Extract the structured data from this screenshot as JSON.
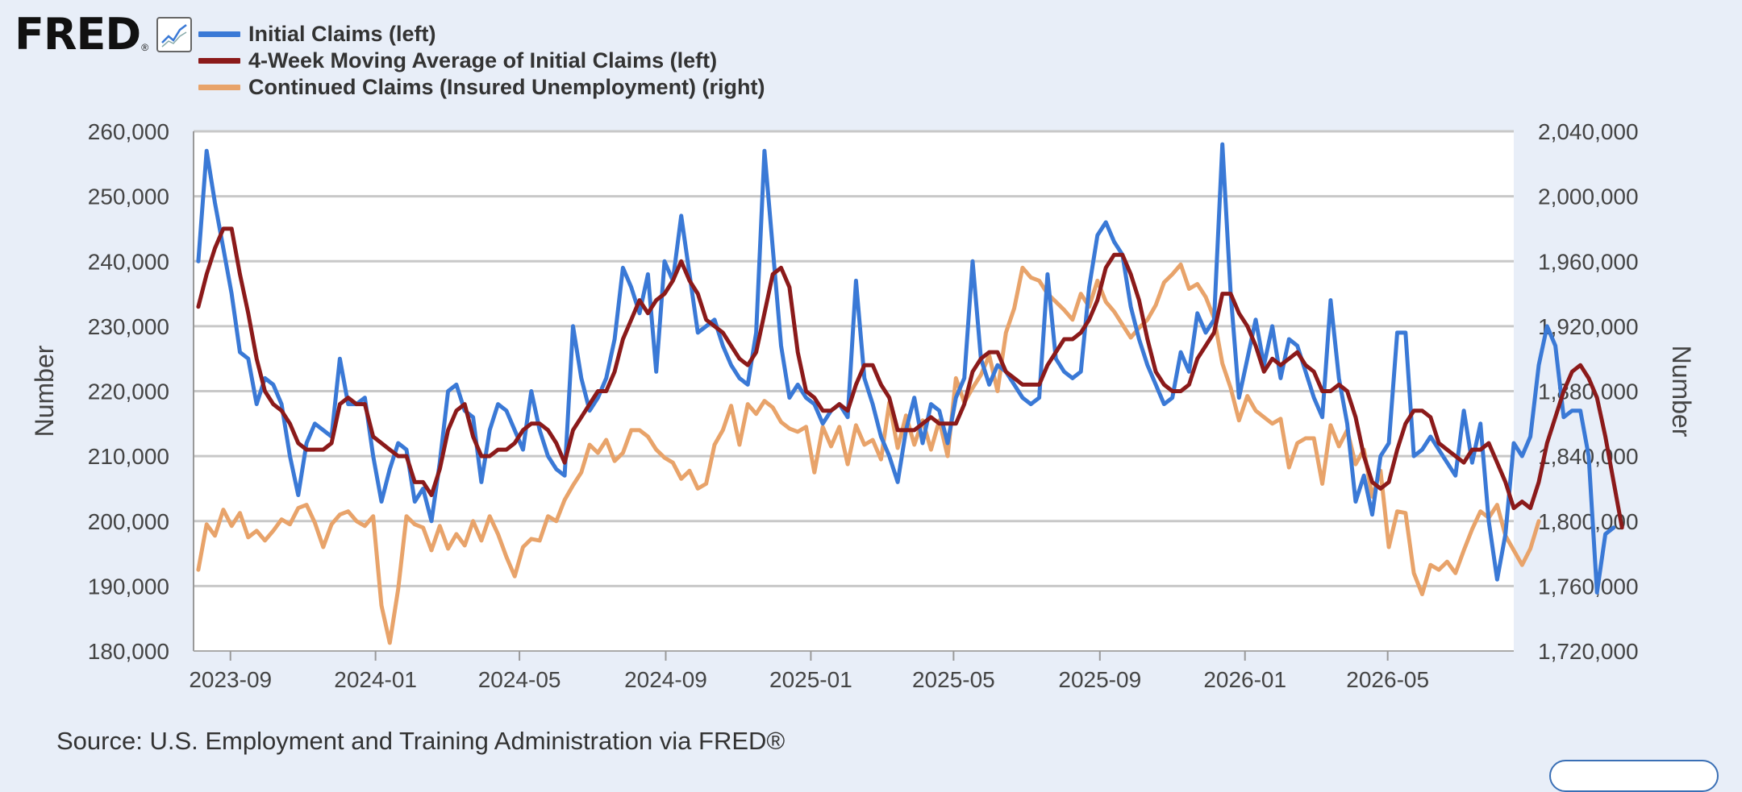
{
  "logo": {
    "text": "FRED",
    "reg": "®",
    "icon": "line-graph-icon"
  },
  "legend": [
    {
      "label": "Initial Claims (left)",
      "color": "#3a79d6"
    },
    {
      "label": "4-Week Moving Average of Initial Claims (left)",
      "color": "#8b1a1a"
    },
    {
      "label": "Continued Claims (Insured Unemployment) (right)",
      "color": "#e8a36a"
    }
  ],
  "source": "Source: U.S. Employment and Training Administration via FRED®",
  "chart_data": {
    "type": "line",
    "ylabel_left": "Number",
    "ylabel_right": "Number",
    "y_left_range": [
      180000,
      260000
    ],
    "y_right_range": [
      1720000,
      2040000
    ],
    "y_left_ticks": [
      "180,000",
      "190,000",
      "200,000",
      "210,000",
      "220,000",
      "230,000",
      "240,000",
      "250,000",
      "260,000"
    ],
    "y_right_ticks": [
      "1,720,000",
      "1,760,000",
      "1,800,000",
      "1,840,000",
      "1,880,000",
      "1,920,000",
      "1,960,000",
      "2,000,000",
      "2,040,000"
    ],
    "x_range": [
      "2023-08-01",
      "2026-08-15"
    ],
    "x_ticks": [
      {
        "date": "2023-09-01",
        "label": "2023-09"
      },
      {
        "date": "2024-01-01",
        "label": "2024-01"
      },
      {
        "date": "2024-05-01",
        "label": "2024-05"
      },
      {
        "date": "2024-09-01",
        "label": "2024-09"
      },
      {
        "date": "2025-01-01",
        "label": "2025-01"
      },
      {
        "date": "2025-05-01",
        "label": "2025-05"
      },
      {
        "date": "2025-09-01",
        "label": "2025-09"
      },
      {
        "date": "2026-01-01",
        "label": "2026-01"
      },
      {
        "date": "2026-05-01",
        "label": "2026-05"
      }
    ],
    "grid": true,
    "legend_position": "top-left",
    "start_date": "2023-08-05",
    "week_step_days": 7,
    "series": [
      {
        "name": "Initial Claims (left)",
        "axis": "left",
        "color": "#3a79d6",
        "values": [
          240000,
          257000,
          249000,
          242000,
          235000,
          226000,
          225000,
          218000,
          222000,
          221000,
          218000,
          210000,
          204000,
          212000,
          215000,
          214000,
          213000,
          225000,
          218000,
          218000,
          219000,
          210000,
          203000,
          208000,
          212000,
          211000,
          203000,
          205000,
          200000,
          209000,
          220000,
          221000,
          217000,
          216000,
          206000,
          214000,
          218000,
          217000,
          214000,
          211000,
          220000,
          214000,
          210000,
          208000,
          207000,
          230000,
          222000,
          217000,
          219000,
          222000,
          228000,
          239000,
          236000,
          232000,
          238000,
          223000,
          240000,
          237000,
          247000,
          238000,
          229000,
          230000,
          231000,
          227000,
          224000,
          222000,
          221000,
          229000,
          257000,
          242000,
          227000,
          219000,
          221000,
          219000,
          218000,
          215000,
          217000,
          218000,
          216000,
          237000,
          222000,
          218000,
          213000,
          210000,
          206000,
          214000,
          219000,
          212000,
          218000,
          217000,
          212000,
          219000,
          222000,
          240000,
          225000,
          221000,
          224000,
          223000,
          221000,
          219000,
          218000,
          219000,
          238000,
          225000,
          223000,
          222000,
          223000,
          236000,
          244000,
          246000,
          243000,
          241000,
          233000,
          228000,
          224000,
          221000,
          218000,
          219000,
          226000,
          223000,
          232000,
          229000,
          231000,
          258000,
          235000,
          219000,
          225000,
          231000,
          224000,
          230000,
          222000,
          228000,
          227000,
          223000,
          219000,
          216000,
          234000,
          222000,
          215000,
          203000,
          207000,
          201000,
          210000,
          212000,
          229000,
          229000,
          210000,
          211000,
          213000,
          211000,
          209000,
          207000,
          217000,
          209000,
          215000,
          200000,
          191000,
          198000,
          212000,
          210000,
          213000,
          224000,
          230000,
          227000,
          216000,
          217000,
          217000,
          210000,
          189000,
          198000,
          199000
        ]
      },
      {
        "name": "4-Week Moving Average of Initial Claims (left)",
        "axis": "left",
        "color": "#8b1a1a",
        "values": [
          233000,
          238000,
          242000,
          245000,
          245000,
          238000,
          232000,
          225000,
          220000,
          218000,
          217000,
          215000,
          212000,
          211000,
          211000,
          211000,
          212000,
          218000,
          219000,
          218000,
          218000,
          213000,
          212000,
          211000,
          210000,
          210000,
          206000,
          206000,
          204000,
          208000,
          214000,
          217000,
          218000,
          213000,
          210000,
          210000,
          211000,
          211000,
          212000,
          214000,
          215000,
          215000,
          214000,
          212000,
          209000,
          214000,
          216000,
          218000,
          220000,
          220000,
          223000,
          228000,
          231000,
          234000,
          232000,
          234000,
          235000,
          237000,
          240000,
          237000,
          235000,
          231000,
          230000,
          229000,
          227000,
          225000,
          224000,
          226000,
          232000,
          238000,
          239000,
          236000,
          226000,
          220000,
          219000,
          217000,
          217000,
          218000,
          217000,
          221000,
          224000,
          224000,
          221000,
          219000,
          214000,
          214000,
          214000,
          215000,
          216000,
          215000,
          215000,
          215000,
          218000,
          223000,
          225000,
          226000,
          226000,
          223000,
          222000,
          221000,
          221000,
          221000,
          224000,
          226000,
          228000,
          228000,
          229000,
          231000,
          234000,
          239000,
          241000,
          241000,
          238000,
          234000,
          228000,
          223000,
          221000,
          220000,
          220000,
          221000,
          225000,
          227000,
          229000,
          235000,
          235000,
          232000,
          230000,
          227000,
          223000,
          225000,
          224000,
          225000,
          226000,
          224000,
          223000,
          220000,
          220000,
          221000,
          220000,
          216000,
          210000,
          206000,
          205000,
          206000,
          211000,
          215000,
          217000,
          217000,
          216000,
          212000,
          211000,
          210000,
          209000,
          211000,
          211000,
          212000,
          209000,
          206000,
          202000,
          203000,
          202000,
          206000,
          212000,
          216000,
          220000,
          223000,
          224000,
          222000,
          219000,
          213000,
          206000,
          199000
        ]
      },
      {
        "name": "Continued Claims (Insured Unemployment) (right)",
        "axis": "right",
        "color": "#e8a36a",
        "values": [
          1770000,
          1798000,
          1791000,
          1807000,
          1797000,
          1805000,
          1790000,
          1794000,
          1788000,
          1794000,
          1801000,
          1798000,
          1808000,
          1810000,
          1799000,
          1784000,
          1798000,
          1804000,
          1806000,
          1800000,
          1797000,
          1803000,
          1748000,
          1725000,
          1758000,
          1803000,
          1798000,
          1796000,
          1782000,
          1797000,
          1783000,
          1792000,
          1785000,
          1800000,
          1788000,
          1803000,
          1792000,
          1778000,
          1766000,
          1784000,
          1789000,
          1788000,
          1803000,
          1800000,
          1813000,
          1822000,
          1830000,
          1847000,
          1842000,
          1850000,
          1837000,
          1842000,
          1856000,
          1856000,
          1852000,
          1844000,
          1839000,
          1836000,
          1826000,
          1831000,
          1820000,
          1823000,
          1847000,
          1856000,
          1871000,
          1847000,
          1872000,
          1866000,
          1874000,
          1870000,
          1861000,
          1857000,
          1855000,
          1858000,
          1830000,
          1858000,
          1846000,
          1858000,
          1835000,
          1859000,
          1847000,
          1850000,
          1838000,
          1873000,
          1845000,
          1865000,
          1847000,
          1862000,
          1844000,
          1862000,
          1840000,
          1888000,
          1873000,
          1882000,
          1890000,
          1902000,
          1880000,
          1916000,
          1931000,
          1956000,
          1950000,
          1948000,
          1940000,
          1935000,
          1930000,
          1924000,
          1940000,
          1932000,
          1948000,
          1935000,
          1929000,
          1921000,
          1913000,
          1919000,
          1924000,
          1933000,
          1947000,
          1952000,
          1958000,
          1943000,
          1946000,
          1938000,
          1925000,
          1897000,
          1882000,
          1862000,
          1877000,
          1868000,
          1864000,
          1860000,
          1863000,
          1833000,
          1848000,
          1851000,
          1851000,
          1823000,
          1859000,
          1846000,
          1856000,
          1835000,
          1844000,
          1815000,
          1831000,
          1784000,
          1806000,
          1805000,
          1768000,
          1755000,
          1773000,
          1770000,
          1775000,
          1768000,
          1782000,
          1795000,
          1806000,
          1802000,
          1810000,
          1791000,
          1782000,
          1773000,
          1783000,
          1800000
        ]
      }
    ]
  }
}
